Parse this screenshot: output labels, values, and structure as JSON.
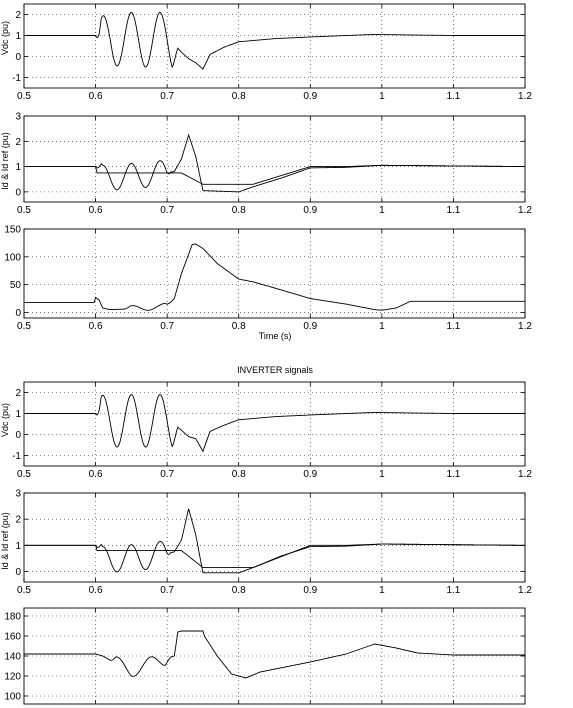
{
  "figure": {
    "section_title": "INVERTER signals"
  },
  "chart_data": [
    {
      "type": "line",
      "group": "rectifier",
      "title": "",
      "xlabel": "",
      "ylabel": "Vdc (pu)",
      "xlim": [
        0.5,
        1.2
      ],
      "ylim": [
        -1.5,
        2.5
      ],
      "xticks": [
        0.5,
        0.6,
        0.7,
        0.8,
        0.9,
        1,
        1.1,
        1.2
      ],
      "yticks": [
        -1,
        0,
        1,
        2
      ],
      "xtick_labels": [
        "0.5",
        "0.6",
        "0.7",
        "0.8",
        "0.9",
        "1",
        "1.1",
        "1.2"
      ],
      "ytick_labels": [
        "-1",
        "0",
        "1",
        "2"
      ],
      "grid": true,
      "series": [
        {
          "x": [
            0.5,
            0.6,
            0.605,
            0.62,
            0.64,
            0.66,
            0.68,
            0.7,
            0.71,
            0.72,
            0.73,
            0.74,
            0.75,
            0.76,
            0.78,
            0.8,
            0.85,
            0.9,
            0.95,
            0.99,
            1.05,
            1.1,
            1.2
          ],
          "y": [
            1,
            1,
            0.5,
            0.9,
            0.8,
            0.8,
            0.8,
            0.8,
            0.6,
            0.2,
            -0.1,
            -0.3,
            -0.6,
            0.1,
            0.45,
            0.7,
            0.85,
            0.93,
            1.0,
            1.05,
            1.02,
            1.0,
            1.0
          ],
          "osc": [
            [
              0.6,
              0.715,
              0.04,
              1.3
            ]
          ]
        }
      ]
    },
    {
      "type": "line",
      "group": "rectifier",
      "title": "",
      "xlabel": "",
      "ylabel": "Id & Id ref (pu)",
      "xlim": [
        0.5,
        1.2
      ],
      "ylim": [
        -0.4,
        3
      ],
      "xticks": [
        0.5,
        0.6,
        0.7,
        0.8,
        0.9,
        1,
        1.1,
        1.2
      ],
      "yticks": [
        0,
        1,
        2,
        3
      ],
      "xtick_labels": [
        "0.5",
        "0.6",
        "0.7",
        "0.8",
        "0.9",
        "1",
        "1.1",
        "1.2"
      ],
      "ytick_labels": [
        "0",
        "1",
        "2",
        "3"
      ],
      "grid": true,
      "series": [
        {
          "x": [
            0.5,
            0.6,
            0.61,
            0.64,
            0.68,
            0.71,
            0.72,
            0.73,
            0.74,
            0.75,
            0.8,
            0.82,
            0.86,
            0.9,
            0.95,
            1.0,
            1.2
          ],
          "y": [
            1,
            1,
            0.55,
            0.6,
            0.7,
            0.8,
            1.3,
            2.25,
            1.4,
            0.05,
            0.0,
            0.2,
            0.55,
            0.95,
            0.97,
            1.05,
            1.0
          ],
          "osc": [
            [
              0.6,
              0.705,
              0.04,
              0.5
            ]
          ]
        },
        {
          "x": [
            0.5,
            0.6,
            0.602,
            0.72,
            0.75,
            0.752,
            0.8,
            0.82,
            0.9,
            0.95,
            1.0,
            1.2
          ],
          "y": [
            1,
            1,
            0.75,
            0.75,
            0.3,
            0.3,
            0.3,
            0.3,
            1.0,
            1.0,
            1.05,
            1.0
          ]
        }
      ]
    },
    {
      "type": "line",
      "group": "rectifier",
      "title": "",
      "xlabel": "Time (s)",
      "ylabel": "",
      "xlim": [
        0.5,
        1.2
      ],
      "ylim": [
        -10,
        150
      ],
      "xticks": [
        0.5,
        0.6,
        0.7,
        0.8,
        0.9,
        1,
        1.1,
        1.2
      ],
      "yticks": [
        0,
        50,
        100,
        150
      ],
      "xtick_labels": [
        "0.5",
        "0.6",
        "0.7",
        "0.8",
        "0.9",
        "1",
        "1.1",
        "1.2"
      ],
      "ytick_labels": [
        "0",
        "50",
        "100",
        "150"
      ],
      "grid": true,
      "series": [
        {
          "x": [
            0.5,
            0.598,
            0.6,
            0.605,
            0.61,
            0.62,
            0.64,
            0.66,
            0.69,
            0.7,
            0.71,
            0.72,
            0.735,
            0.74,
            0.75,
            0.77,
            0.8,
            0.82,
            0.85,
            0.9,
            0.95,
            0.99,
            1.0,
            1.02,
            1.04,
            1.2
          ],
          "y": [
            18,
            18,
            27,
            22,
            8,
            5,
            6,
            8,
            10,
            12,
            25,
            70,
            122,
            123,
            115,
            88,
            60,
            55,
            44,
            25,
            15,
            5,
            4,
            8,
            20,
            20
          ],
          "osc": [
            [
              0.64,
              0.705,
              0.045,
              5
            ]
          ]
        }
      ]
    },
    {
      "type": "line",
      "group": "inverter",
      "title": "INVERTER signals",
      "xlabel": "",
      "ylabel": "Vdc (pu)",
      "xlim": [
        0.5,
        1.2
      ],
      "ylim": [
        -1.5,
        2.5
      ],
      "xticks": [
        0.5,
        0.6,
        0.7,
        0.8,
        0.9,
        1,
        1.1,
        1.2
      ],
      "yticks": [
        -1,
        0,
        1,
        2
      ],
      "xtick_labels": [
        "0.5",
        "0.6",
        "0.7",
        "0.8",
        "0.9",
        "1",
        "1.1",
        "1.2"
      ],
      "ytick_labels": [
        "-1",
        "0",
        "1",
        "2"
      ],
      "grid": true,
      "series": [
        {
          "x": [
            0.5,
            0.6,
            0.605,
            0.62,
            0.64,
            0.66,
            0.68,
            0.7,
            0.71,
            0.72,
            0.73,
            0.74,
            0.75,
            0.76,
            0.78,
            0.8,
            0.85,
            0.9,
            0.95,
            0.99,
            1.05,
            1.1,
            1.2
          ],
          "y": [
            1,
            1,
            0.6,
            0.65,
            0.65,
            0.65,
            0.65,
            0.65,
            0.5,
            0.2,
            -0.1,
            -0.2,
            -0.8,
            0.15,
            0.45,
            0.7,
            0.85,
            0.93,
            1.0,
            1.05,
            1.02,
            1.0,
            1.0
          ],
          "osc": [
            [
              0.6,
              0.715,
              0.04,
              1.25
            ]
          ]
        }
      ]
    },
    {
      "type": "line",
      "group": "inverter",
      "title": "",
      "xlabel": "",
      "ylabel": "Id & Id ref (pu)",
      "xlim": [
        0.5,
        1.2
      ],
      "ylim": [
        -0.4,
        3
      ],
      "xticks": [
        0.5,
        0.6,
        0.7,
        0.8,
        0.9,
        1,
        1.1,
        1.2
      ],
      "yticks": [
        0,
        1,
        2,
        3
      ],
      "xtick_labels": [
        "0.5",
        "0.6",
        "0.7",
        "0.8",
        "0.9",
        "1",
        "1.1",
        "1.2"
      ],
      "ytick_labels": [
        "0",
        "1",
        "2",
        "3"
      ],
      "grid": true,
      "series": [
        {
          "x": [
            0.5,
            0.6,
            0.61,
            0.64,
            0.68,
            0.71,
            0.72,
            0.73,
            0.74,
            0.75,
            0.8,
            0.82,
            0.86,
            0.9,
            0.95,
            1.0,
            1.2
          ],
          "y": [
            1,
            1,
            0.45,
            0.5,
            0.6,
            0.75,
            1.2,
            2.4,
            1.4,
            -0.05,
            -0.05,
            0.15,
            0.6,
            0.95,
            0.97,
            1.05,
            1.0
          ],
          "osc": [
            [
              0.6,
              0.705,
              0.04,
              0.5
            ]
          ]
        },
        {
          "x": [
            0.5,
            0.6,
            0.602,
            0.72,
            0.75,
            0.752,
            0.8,
            0.82,
            0.9,
            0.95,
            1.0,
            1.2
          ],
          "y": [
            1,
            1,
            0.8,
            0.8,
            0.15,
            0.15,
            0.15,
            0.15,
            1.0,
            1.0,
            1.05,
            1.0
          ]
        }
      ]
    },
    {
      "type": "line",
      "group": "inverter",
      "title": "",
      "xlabel": "",
      "ylabel": "",
      "xlim": [
        0.5,
        1.2
      ],
      "ylim": [
        92,
        188
      ],
      "xticks": [
        0.5,
        0.6,
        0.7,
        0.8,
        0.9,
        1,
        1.1,
        1.2
      ],
      "yticks": [
        100,
        120,
        140,
        160,
        180
      ],
      "xtick_labels": [
        "0.5",
        "0.6",
        "0.7",
        "0.8",
        "0.9",
        "1",
        "1.1",
        "1.2"
      ],
      "ytick_labels": [
        "100",
        "120",
        "140",
        "160",
        "180"
      ],
      "grid": true,
      "series": [
        {
          "x": [
            0.5,
            0.6,
            0.61,
            0.63,
            0.65,
            0.67,
            0.69,
            0.7,
            0.71,
            0.715,
            0.72,
            0.75,
            0.752,
            0.77,
            0.79,
            0.81,
            0.83,
            0.9,
            0.95,
            0.99,
            1.02,
            1.05,
            1.1,
            1.2
          ],
          "y": [
            142,
            142,
            140,
            132,
            126,
            130,
            136,
            138,
            140,
            164,
            165,
            165,
            160,
            140,
            122,
            118,
            124,
            134,
            142,
            152,
            148,
            143,
            141,
            141
          ],
          "osc": [
            [
              0.62,
              0.705,
              0.045,
              7
            ]
          ]
        }
      ]
    }
  ]
}
